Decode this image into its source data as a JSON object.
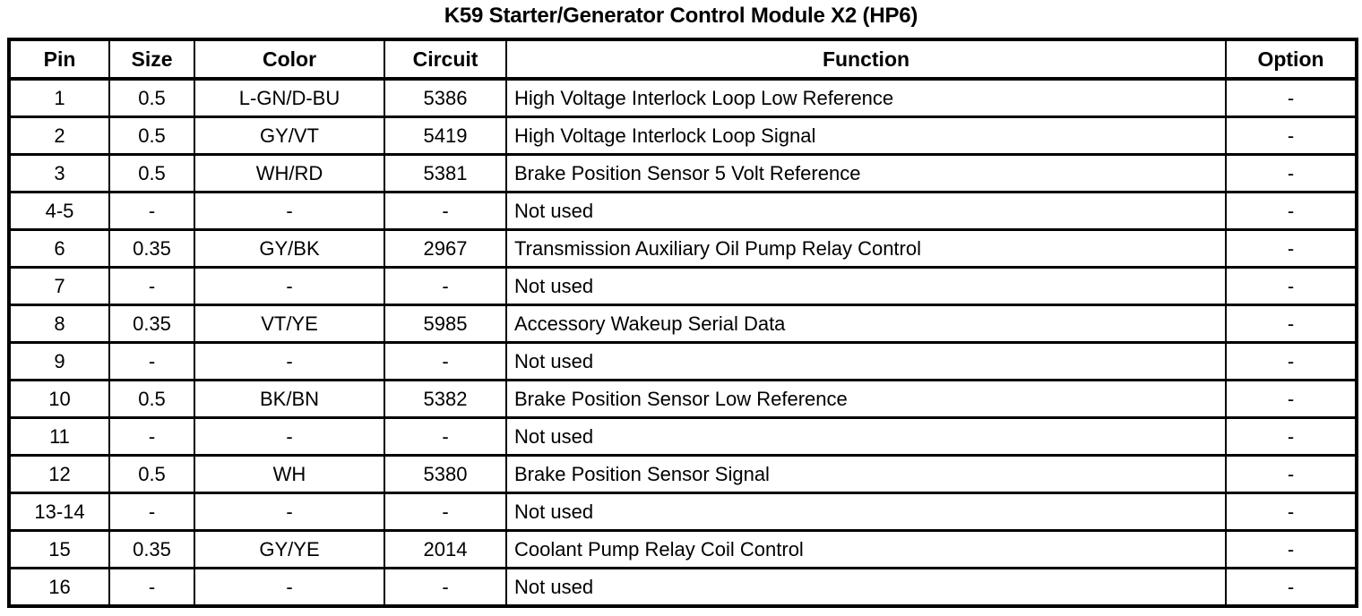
{
  "title": "K59 Starter/Generator Control Module X2 (HP6)",
  "colors": {
    "text": "#000000",
    "background": "#ffffff",
    "border": "#000000"
  },
  "table": {
    "columns": [
      "Pin",
      "Size",
      "Color",
      "Circuit",
      "Function",
      "Option"
    ],
    "rows": [
      [
        "1",
        "0.5",
        "L-GN/D-BU",
        "5386",
        "High Voltage Interlock Loop Low Reference",
        "-"
      ],
      [
        "2",
        "0.5",
        "GY/VT",
        "5419",
        "High Voltage Interlock Loop Signal",
        "-"
      ],
      [
        "3",
        "0.5",
        "WH/RD",
        "5381",
        "Brake Position Sensor 5 Volt Reference",
        "-"
      ],
      [
        "4-5",
        "-",
        "-",
        "-",
        "Not used",
        "-"
      ],
      [
        "6",
        "0.35",
        "GY/BK",
        "2967",
        "Transmission Auxiliary Oil Pump Relay Control",
        "-"
      ],
      [
        "7",
        "-",
        "-",
        "-",
        "Not used",
        "-"
      ],
      [
        "8",
        "0.35",
        "VT/YE",
        "5985",
        "Accessory Wakeup Serial Data",
        "-"
      ],
      [
        "9",
        "-",
        "-",
        "-",
        "Not used",
        "-"
      ],
      [
        "10",
        "0.5",
        "BK/BN",
        "5382",
        "Brake Position Sensor Low Reference",
        "-"
      ],
      [
        "11",
        "-",
        "-",
        "-",
        "Not used",
        "-"
      ],
      [
        "12",
        "0.5",
        "WH",
        "5380",
        "Brake Position Sensor Signal",
        "-"
      ],
      [
        "13-14",
        "-",
        "-",
        "-",
        "Not used",
        "-"
      ],
      [
        "15",
        "0.35",
        "GY/YE",
        "2014",
        "Coolant Pump Relay Coil Control",
        "-"
      ],
      [
        "16",
        "-",
        "-",
        "-",
        "Not used",
        "-"
      ]
    ]
  }
}
